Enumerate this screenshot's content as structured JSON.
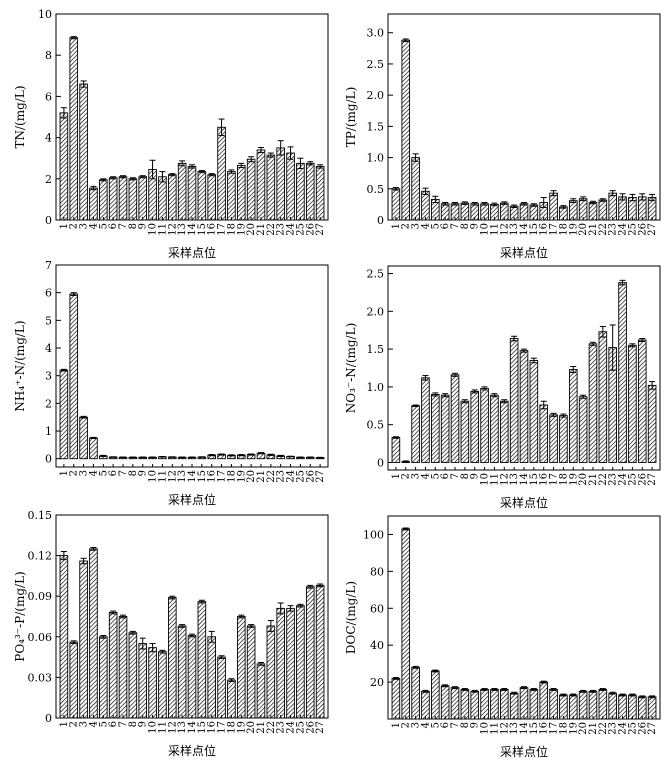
{
  "chart_data": [
    {
      "type": "bar",
      "ylabel": "TN/(mg/L)",
      "xlabel": "采样点位",
      "ylim": [
        0,
        10
      ],
      "yticks": [
        0,
        2,
        4,
        6,
        8,
        10
      ],
      "ytick_labels": [
        "0",
        "2",
        "4",
        "6",
        "8",
        "10"
      ],
      "categories": [
        "1",
        "2",
        "3",
        "4",
        "5",
        "6",
        "7",
        "8",
        "9",
        "10",
        "11",
        "12",
        "13",
        "14",
        "15",
        "16",
        "17",
        "18",
        "19",
        "20",
        "21",
        "22",
        "23",
        "24",
        "25",
        "26",
        "27"
      ],
      "values": [
        5.2,
        8.85,
        6.6,
        1.55,
        1.95,
        2.05,
        2.1,
        2.0,
        2.1,
        2.45,
        2.1,
        2.2,
        2.75,
        2.6,
        2.35,
        2.2,
        4.5,
        2.35,
        2.65,
        2.95,
        3.4,
        3.15,
        3.5,
        3.25,
        2.75,
        2.75,
        2.6
      ],
      "errors": [
        0.25,
        0.05,
        0.15,
        0.08,
        0.05,
        0.05,
        0.05,
        0.05,
        0.05,
        0.45,
        0.25,
        0.05,
        0.12,
        0.08,
        0.05,
        0.05,
        0.4,
        0.08,
        0.1,
        0.12,
        0.12,
        0.1,
        0.35,
        0.3,
        0.25,
        0.08,
        0.08
      ],
      "grid": false
    },
    {
      "type": "bar",
      "ylabel": "TP/(mg/L)",
      "xlabel": "采样点位",
      "ylim": [
        0,
        3.3
      ],
      "yticks": [
        0,
        0.5,
        1.0,
        1.5,
        2.0,
        2.5,
        3.0
      ],
      "ytick_labels": [
        "0",
        "0.5",
        "1.0",
        "1.5",
        "2.0",
        "2.5",
        "3.0"
      ],
      "categories": [
        "1",
        "2",
        "3",
        "4",
        "5",
        "6",
        "7",
        "8",
        "9",
        "10",
        "11",
        "12",
        "13",
        "14",
        "15",
        "16",
        "17",
        "18",
        "19",
        "20",
        "21",
        "22",
        "23",
        "24",
        "25",
        "26",
        "27"
      ],
      "values": [
        0.5,
        2.88,
        1.0,
        0.46,
        0.33,
        0.26,
        0.26,
        0.27,
        0.26,
        0.26,
        0.25,
        0.27,
        0.22,
        0.26,
        0.24,
        0.28,
        0.43,
        0.21,
        0.31,
        0.34,
        0.28,
        0.32,
        0.43,
        0.37,
        0.36,
        0.37,
        0.36
      ],
      "errors": [
        0.02,
        0.02,
        0.06,
        0.05,
        0.05,
        0.02,
        0.02,
        0.02,
        0.02,
        0.02,
        0.02,
        0.02,
        0.02,
        0.02,
        0.02,
        0.08,
        0.04,
        0.02,
        0.03,
        0.03,
        0.02,
        0.02,
        0.04,
        0.05,
        0.05,
        0.05,
        0.05
      ],
      "grid": false
    },
    {
      "type": "bar",
      "ylabel": "NH₄⁺-N/(mg/L)",
      "xlabel": "采样点位",
      "ylim": [
        -0.3,
        7
      ],
      "yticks": [
        0,
        1,
        2,
        3,
        4,
        5,
        6,
        7
      ],
      "ytick_labels": [
        "0",
        "1",
        "2",
        "3",
        "4",
        "5",
        "6",
        "7"
      ],
      "categories": [
        "1",
        "2",
        "3",
        "4",
        "5",
        "6",
        "7",
        "8",
        "9",
        "10",
        "11",
        "12",
        "13",
        "14",
        "15",
        "16",
        "17",
        "18",
        "19",
        "20",
        "21",
        "22",
        "23",
        "24",
        "25",
        "26",
        "27"
      ],
      "values": [
        3.2,
        5.95,
        1.5,
        0.75,
        0.1,
        0.06,
        0.05,
        0.05,
        0.05,
        0.05,
        0.07,
        0.06,
        0.05,
        0.05,
        0.06,
        0.13,
        0.15,
        0.12,
        0.13,
        0.15,
        0.2,
        0.14,
        0.1,
        0.08,
        0.05,
        0.05,
        0.04
      ],
      "errors": [
        0.03,
        0.05,
        0.03,
        0.02,
        0.02,
        0.01,
        0.01,
        0.01,
        0.01,
        0.01,
        0.01,
        0.01,
        0.01,
        0.01,
        0.01,
        0.02,
        0.02,
        0.02,
        0.02,
        0.02,
        0.02,
        0.02,
        0.02,
        0.01,
        0.01,
        0.01,
        0.01
      ],
      "grid": false
    },
    {
      "type": "bar",
      "ylabel": "NO₃⁻-N/(mg/L)",
      "xlabel": "采样点位",
      "ylim": [
        -0.1,
        2.6
      ],
      "yticks": [
        0,
        0.5,
        1.0,
        1.5,
        2.0,
        2.5
      ],
      "ytick_labels": [
        "0",
        "0.5",
        "1.0",
        "1.5",
        "2.0",
        "2.5"
      ],
      "categories": [
        "1",
        "2",
        "3",
        "4",
        "5",
        "6",
        "7",
        "8",
        "9",
        "10",
        "11",
        "12",
        "13",
        "14",
        "15",
        "16",
        "17",
        "18",
        "19",
        "20",
        "21",
        "22",
        "23",
        "24",
        "25",
        "26",
        "27"
      ],
      "values": [
        0.33,
        0.01,
        0.75,
        1.12,
        0.9,
        0.89,
        1.16,
        0.81,
        0.94,
        0.98,
        0.89,
        0.81,
        1.64,
        1.48,
        1.35,
        0.76,
        0.63,
        0.62,
        1.23,
        0.87,
        1.57,
        1.73,
        1.52,
        2.38,
        1.55,
        1.62,
        1.02
      ],
      "errors": [
        0.01,
        0.01,
        0.01,
        0.03,
        0.02,
        0.02,
        0.02,
        0.02,
        0.02,
        0.02,
        0.02,
        0.02,
        0.03,
        0.02,
        0.03,
        0.05,
        0.02,
        0.02,
        0.04,
        0.02,
        0.02,
        0.07,
        0.3,
        0.03,
        0.02,
        0.02,
        0.05
      ],
      "grid": false
    },
    {
      "type": "bar",
      "ylabel": "PO₄³⁻-P/(mg/L)",
      "xlabel": "采样点位",
      "ylim": [
        0,
        0.15
      ],
      "yticks": [
        0,
        0.03,
        0.06,
        0.09,
        0.12,
        0.15
      ],
      "ytick_labels": [
        "0",
        "0.03",
        "0.06",
        "0.09",
        "0.12",
        "0.15"
      ],
      "categories": [
        "1",
        "2",
        "3",
        "4",
        "5",
        "6",
        "7",
        "8",
        "9",
        "10",
        "11",
        "12",
        "13",
        "14",
        "15",
        "16",
        "17",
        "18",
        "19",
        "20",
        "21",
        "22",
        "23",
        "24",
        "25",
        "26",
        "27"
      ],
      "values": [
        0.12,
        0.056,
        0.116,
        0.125,
        0.06,
        0.078,
        0.075,
        0.063,
        0.055,
        0.052,
        0.049,
        0.089,
        0.068,
        0.061,
        0.086,
        0.06,
        0.045,
        0.028,
        0.075,
        0.068,
        0.04,
        0.068,
        0.081,
        0.081,
        0.083,
        0.097,
        0.098
      ],
      "errors": [
        0.003,
        0.001,
        0.002,
        0.001,
        0.001,
        0.001,
        0.001,
        0.001,
        0.004,
        0.003,
        0.001,
        0.001,
        0.001,
        0.001,
        0.001,
        0.004,
        0.001,
        0.001,
        0.001,
        0.001,
        0.001,
        0.004,
        0.004,
        0.002,
        0.001,
        0.001,
        0.001
      ],
      "grid": false
    },
    {
      "type": "bar",
      "ylabel": "DOC/(mg/L)",
      "xlabel": "采样点位",
      "ylim": [
        0,
        110
      ],
      "yticks": [
        20,
        40,
        60,
        80,
        100
      ],
      "ytick_labels": [
        "20",
        "40",
        "60",
        "80",
        "100"
      ],
      "categories": [
        "1",
        "2",
        "3",
        "4",
        "5",
        "6",
        "7",
        "8",
        "9",
        "10",
        "11",
        "12",
        "13",
        "14",
        "15",
        "16",
        "17",
        "18",
        "19",
        "20",
        "21",
        "22",
        "23",
        "24",
        "25",
        "26",
        "27"
      ],
      "values": [
        22,
        103,
        28,
        15,
        26,
        18,
        17,
        16,
        15,
        16,
        16,
        16,
        14,
        17,
        16,
        20,
        16,
        13,
        13,
        15,
        15,
        16,
        14,
        13,
        13,
        12,
        12
      ],
      "errors": [
        0.5,
        0.5,
        0.5,
        0.5,
        0.5,
        0.5,
        0.5,
        0.5,
        0.5,
        0.5,
        0.5,
        0.5,
        0.5,
        0.5,
        0.5,
        0.5,
        0.5,
        0.5,
        0.5,
        0.5,
        0.5,
        0.5,
        0.5,
        0.5,
        0.5,
        0.5,
        0.5
      ],
      "grid": false
    }
  ]
}
